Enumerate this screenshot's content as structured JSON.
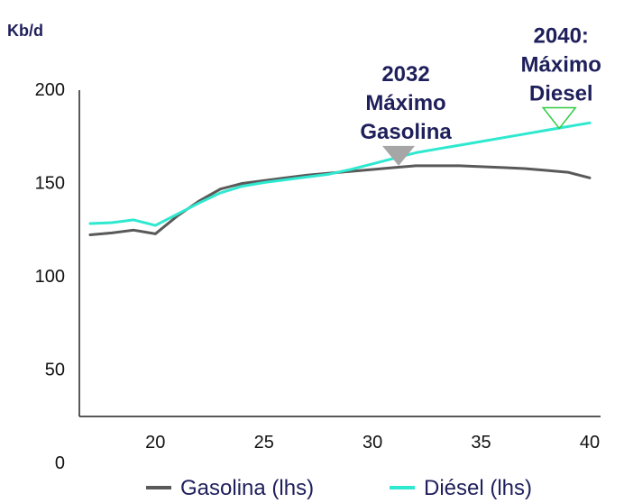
{
  "chart_data": {
    "type": "line",
    "title": "",
    "ylabel": "Kb/d",
    "xlabel": "",
    "xlim": [
      16.5,
      40.5
    ],
    "ylim": [
      0,
      200
    ],
    "x_ticks": [
      20,
      25,
      30,
      35,
      40
    ],
    "y_ticks": [
      0,
      50,
      100,
      150,
      200
    ],
    "x": [
      17,
      18,
      19,
      20,
      21,
      22,
      23,
      24,
      25,
      26,
      27,
      28,
      29,
      30,
      31,
      32,
      33,
      34,
      35,
      36,
      37,
      38,
      39,
      40
    ],
    "series": [
      {
        "name": "Gasolina (lhs)",
        "color": "#595959",
        "values": [
          122,
          123,
          124.5,
          122.5,
          132,
          140,
          146.5,
          149.5,
          151,
          152.5,
          154,
          155,
          156,
          157,
          158,
          159,
          159,
          159,
          158.5,
          158,
          157.5,
          156.5,
          155.5,
          152.5
        ]
      },
      {
        "name": "Diésel (lhs)",
        "color": "#2ee8d0",
        "values": [
          128,
          128.5,
          130,
          127,
          133,
          139,
          144.5,
          148,
          150,
          151.5,
          153,
          154.5,
          157,
          160,
          163,
          166,
          168,
          170,
          172,
          174,
          176,
          178,
          180,
          182
        ]
      }
    ],
    "annotations": [
      {
        "lines": [
          "2032",
          "Máximo",
          "Gasolina"
        ],
        "x": 31.2,
        "y": 159,
        "marker": "filled-triangle-down",
        "color": "#a6a6a6"
      },
      {
        "lines": [
          "2040:",
          "Máximo",
          "Diesel"
        ],
        "x": 38.6,
        "y": 179,
        "marker": "outline-triangle-down",
        "color": "#2ecc40"
      }
    ],
    "legend": "bottom",
    "grid": false
  }
}
